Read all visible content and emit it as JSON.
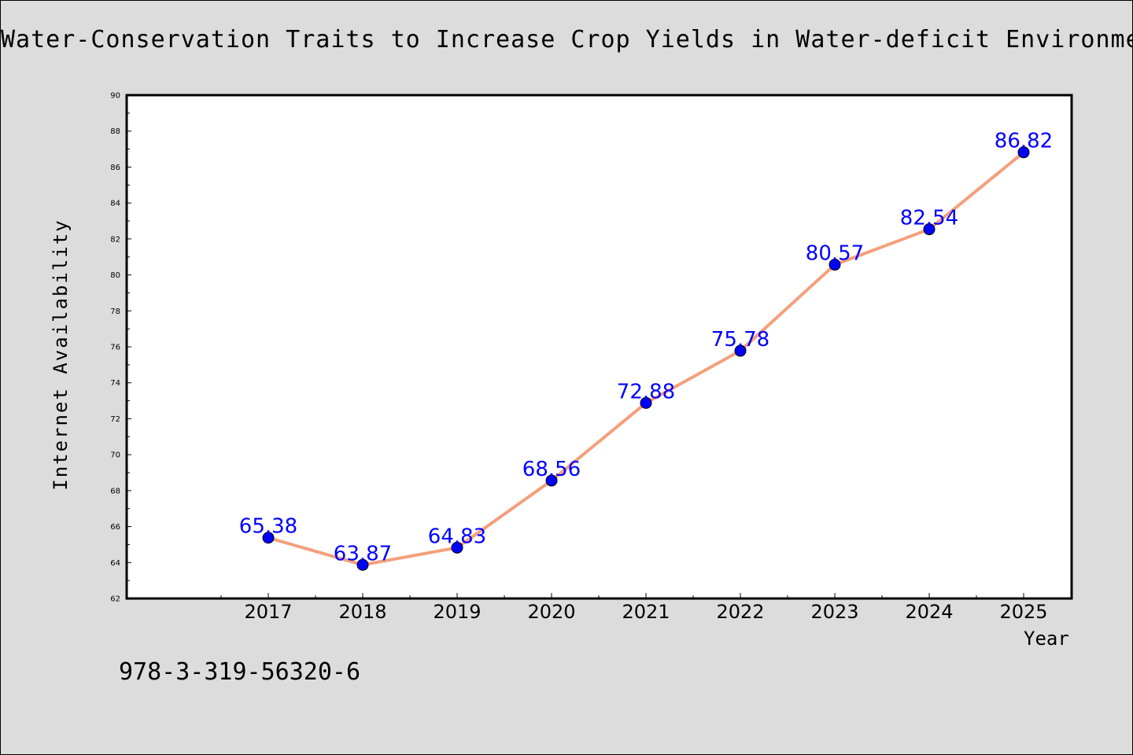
{
  "chart_data": {
    "type": "line",
    "title": "Water-Conservation Traits to Increase Crop Yields in Water-deficit Environments",
    "xlabel": "Year",
    "ylabel": "Internet Availability",
    "categories": [
      "2017",
      "2018",
      "2019",
      "2020",
      "2021",
      "2022",
      "2023",
      "2024",
      "2025"
    ],
    "series": [
      {
        "values": [
          65.38,
          63.87,
          64.83,
          68.56,
          72.88,
          75.78,
          80.57,
          82.54,
          86.82
        ],
        "line_color": "#f4a07c",
        "marker_color": "#0000ff",
        "label_color": "#0000ff"
      }
    ],
    "ylim": [
      62,
      90
    ],
    "yticks": [
      "62",
      "64",
      "66",
      "68",
      "70",
      "72",
      "74",
      "76",
      "78",
      "80",
      "82",
      "84",
      "86",
      "88",
      "90"
    ],
    "data_labels": [
      "65.38",
      "63.87",
      "64.83",
      "68.56",
      "72.88",
      "75.78",
      "80.57",
      "82.54",
      "86.82"
    ],
    "grid": false,
    "legend": "none",
    "plot_background": "#ffffff",
    "page_background": "#dcdcdc"
  },
  "footnote": "978-3-319-56320-6"
}
